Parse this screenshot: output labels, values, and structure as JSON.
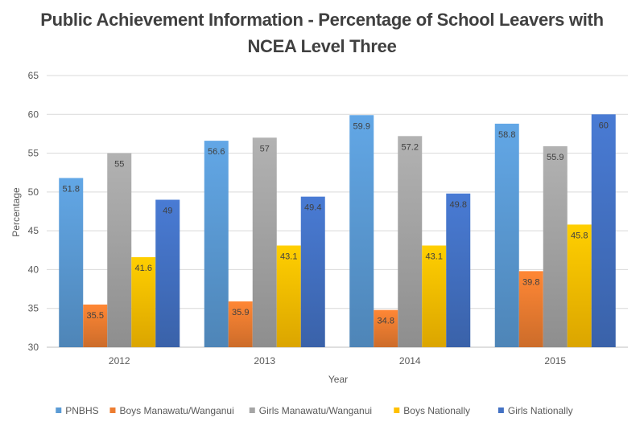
{
  "chart_data": {
    "type": "bar",
    "title_line1": "Public Achievement Information - Percentage of School Leavers with",
    "title_line2": "NCEA Level Three",
    "xlabel": "Year",
    "ylabel": "Percentage",
    "categories": [
      "2012",
      "2013",
      "2014",
      "2015"
    ],
    "ylim": [
      30,
      65
    ],
    "yticks": [
      30,
      35,
      40,
      45,
      50,
      55,
      60,
      65
    ],
    "grid": true,
    "legend_position": "bottom",
    "series": [
      {
        "name": "PNBHS",
        "color": "#5b9bd5",
        "values": [
          51.8,
          56.6,
          59.9,
          58.8
        ]
      },
      {
        "name": "Boys Manawatu/Wanganui",
        "color": "#ed7d31",
        "values": [
          35.5,
          35.9,
          34.8,
          39.8
        ]
      },
      {
        "name": "Girls Manawatu/Wanganui",
        "color": "#a5a5a5",
        "values": [
          55,
          57,
          57.2,
          55.9
        ]
      },
      {
        "name": "Boys Nationally",
        "color": "#ffc000",
        "values": [
          41.6,
          43.1,
          43.1,
          45.8
        ]
      },
      {
        "name": "Girls Nationally",
        "color": "#4472c4",
        "values": [
          49,
          49.4,
          49.8,
          60
        ]
      }
    ]
  }
}
